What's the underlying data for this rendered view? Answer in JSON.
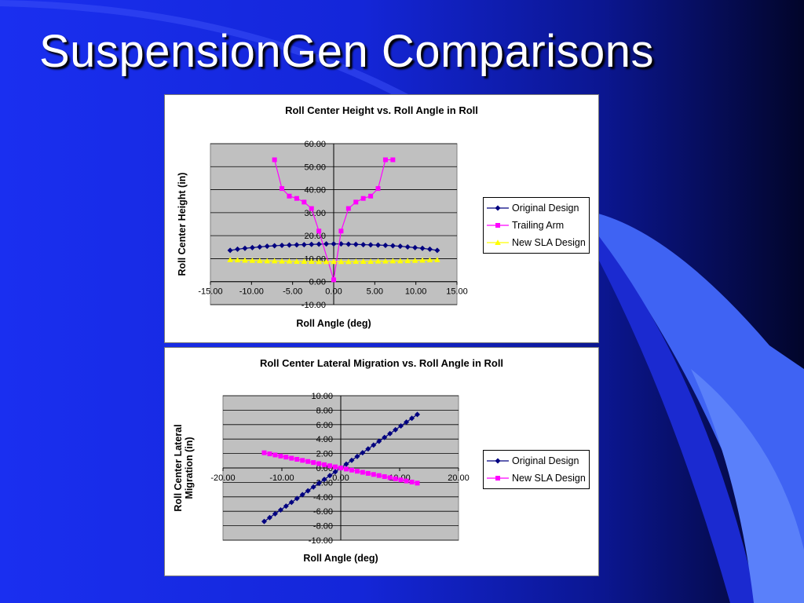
{
  "slide": {
    "title": "SuspensionGen Comparisons"
  },
  "chart_data": [
    {
      "type": "scatter",
      "title": "Roll Center Height vs. Roll Angle in Roll",
      "xlabel": "Roll Angle (deg)",
      "ylabel": "Roll Center Height (in)",
      "xlim": [
        -15,
        15
      ],
      "ylim": [
        -10,
        60
      ],
      "xticks": [
        "-15.00",
        "-10.00",
        "-5.00",
        "0.00",
        "5.00",
        "10.00",
        "15.00"
      ],
      "yticks": [
        "-10.00",
        "0.00",
        "10.00",
        "20.00",
        "30.00",
        "40.00",
        "50.00",
        "60.00"
      ],
      "grid": true,
      "legend": "right",
      "series": [
        {
          "name": "Original Design",
          "color": "#000080",
          "marker": "diamond",
          "x": [
            -12.6,
            -11.7,
            -10.8,
            -9.9,
            -9.0,
            -8.1,
            -7.2,
            -6.3,
            -5.4,
            -4.5,
            -3.6,
            -2.7,
            -1.8,
            -0.9,
            0.0,
            0.9,
            1.8,
            2.7,
            3.6,
            4.5,
            5.4,
            6.3,
            7.2,
            8.1,
            9.0,
            9.9,
            10.8,
            11.7,
            12.6
          ],
          "y": [
            13.6,
            14.1,
            14.5,
            14.8,
            15.1,
            15.4,
            15.6,
            15.8,
            15.9,
            16.0,
            16.1,
            16.2,
            16.3,
            16.4,
            16.4,
            16.4,
            16.3,
            16.2,
            16.1,
            16.0,
            15.9,
            15.8,
            15.6,
            15.4,
            15.1,
            14.8,
            14.5,
            14.1,
            13.6
          ]
        },
        {
          "name": "Trailing Arm",
          "color": "#ff00ff",
          "marker": "square",
          "x": [
            -7.2,
            -6.3,
            -5.4,
            -4.5,
            -3.6,
            -2.7,
            -1.8,
            0.0,
            0.9,
            1.8,
            2.7,
            3.6,
            4.5,
            5.4,
            6.3,
            7.2
          ],
          "y": [
            53.0,
            40.5,
            37.2,
            36.2,
            34.6,
            31.8,
            22.0,
            0.8,
            22.0,
            31.8,
            34.6,
            36.2,
            37.2,
            40.5,
            53.0,
            53.0
          ]
        },
        {
          "name": "New SLA Design",
          "color": "#ffff00",
          "marker": "triangle",
          "x": [
            -12.6,
            -11.7,
            -10.8,
            -9.9,
            -9.0,
            -8.1,
            -7.2,
            -6.3,
            -5.4,
            -4.5,
            -3.6,
            -2.7,
            -1.8,
            -0.9,
            0.0,
            0.9,
            1.8,
            2.7,
            3.6,
            4.5,
            5.4,
            6.3,
            7.2,
            8.1,
            9.0,
            9.9,
            10.8,
            11.7,
            12.6
          ],
          "y": [
            9.5,
            9.4,
            9.3,
            9.2,
            9.1,
            9.0,
            9.0,
            8.9,
            8.9,
            8.8,
            8.8,
            8.8,
            8.7,
            8.7,
            8.7,
            8.7,
            8.7,
            8.8,
            8.8,
            8.8,
            8.9,
            8.9,
            9.0,
            9.0,
            9.1,
            9.2,
            9.3,
            9.4,
            9.5
          ]
        }
      ]
    },
    {
      "type": "scatter",
      "title": "Roll Center Lateral Migration vs. Roll Angle in Roll",
      "xlabel": "Roll Angle (deg)",
      "ylabel": [
        "Roll Center Lateral",
        "Migration (in)"
      ],
      "xlim": [
        -20,
        20
      ],
      "ylim": [
        -10,
        10
      ],
      "xticks": [
        "-20.00",
        "-10.00",
        "0.00",
        "10.00",
        "20.00"
      ],
      "yticks": [
        "-10.00",
        "-8.00",
        "-6.00",
        "-4.00",
        "-2.00",
        "0.00",
        "2.00",
        "4.00",
        "6.00",
        "8.00",
        "10.00"
      ],
      "grid": true,
      "legend": "right",
      "series": [
        {
          "name": "Original Design",
          "color": "#000080",
          "marker": "diamond",
          "x": [
            -13.0,
            -12.07,
            -11.14,
            -10.21,
            -9.29,
            -8.36,
            -7.43,
            -6.5,
            -5.57,
            -4.64,
            -3.71,
            -2.79,
            -1.86,
            -0.93,
            0.0,
            0.93,
            1.86,
            2.79,
            3.71,
            4.64,
            5.57,
            6.5,
            7.43,
            8.36,
            9.29,
            10.21,
            11.14,
            12.07,
            13.0
          ],
          "y": [
            -7.4,
            -6.87,
            -6.34,
            -5.81,
            -5.29,
            -4.76,
            -4.23,
            -3.7,
            -3.17,
            -2.64,
            -2.11,
            -1.59,
            -1.06,
            -0.53,
            0.0,
            0.53,
            1.06,
            1.59,
            2.11,
            2.64,
            3.17,
            3.7,
            4.23,
            4.76,
            5.29,
            5.81,
            6.34,
            6.87,
            7.4
          ]
        },
        {
          "name": "New SLA Design",
          "color": "#ff00ff",
          "marker": "square",
          "x": [
            -13.0,
            -12.07,
            -11.14,
            -10.21,
            -9.29,
            -8.36,
            -7.43,
            -6.5,
            -5.57,
            -4.64,
            -3.71,
            -2.79,
            -1.86,
            -0.93,
            0.0,
            0.93,
            1.86,
            2.79,
            3.71,
            4.64,
            5.57,
            6.5,
            7.43,
            8.36,
            9.29,
            10.21,
            11.14,
            12.07,
            13.0
          ],
          "y": [
            2.1,
            1.95,
            1.8,
            1.65,
            1.5,
            1.35,
            1.2,
            1.05,
            0.9,
            0.75,
            0.6,
            0.45,
            0.3,
            0.15,
            0.0,
            -0.15,
            -0.3,
            -0.45,
            -0.6,
            -0.75,
            -0.9,
            -1.05,
            -1.2,
            -1.35,
            -1.5,
            -1.65,
            -1.8,
            -1.95,
            -2.1
          ]
        }
      ]
    }
  ]
}
